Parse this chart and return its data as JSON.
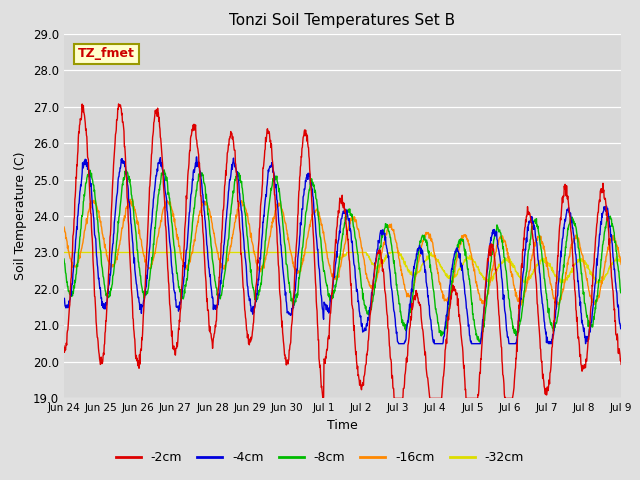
{
  "title": "Tonzi Soil Temperatures Set B",
  "xlabel": "Time",
  "ylabel": "Soil Temperature (C)",
  "ylim": [
    19.0,
    29.0
  ],
  "yticks": [
    19.0,
    20.0,
    21.0,
    22.0,
    23.0,
    24.0,
    25.0,
    26.0,
    27.0,
    28.0,
    29.0
  ],
  "bg_color": "#e0e0e0",
  "plot_bg_color": "#d8d8d8",
  "series_colors": {
    "-2cm": "#dd0000",
    "-4cm": "#0000dd",
    "-8cm": "#00bb00",
    "-16cm": "#ff8800",
    "-32cm": "#dddd00"
  },
  "annotation_text": "TZ_fmet",
  "annotation_bg": "#ffffcc",
  "annotation_border": "#999900",
  "xtick_labels": [
    "Jun 24",
    "Jun 25",
    "Jun 26",
    "Jun 27",
    "Jun 28",
    "Jun 29",
    "Jun 30",
    "Jul 1",
    "Jul 2",
    "Jul 3",
    "Jul 4",
    "Jul 5",
    "Jul 6",
    "Jul 7",
    "Jul 8",
    "Jul 9"
  ]
}
